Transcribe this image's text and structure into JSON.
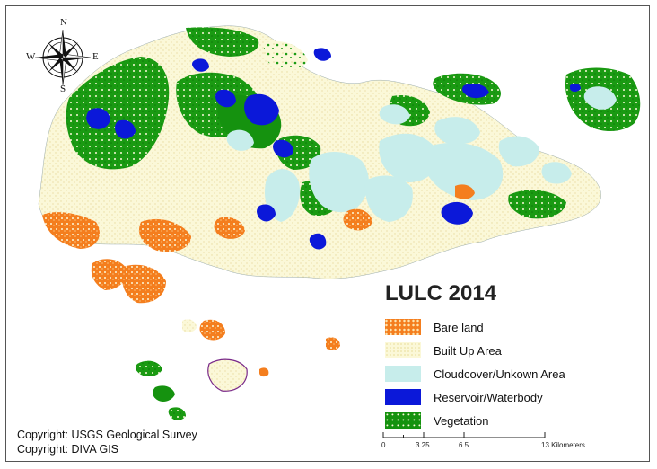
{
  "legend": {
    "title": "LULC 2014",
    "items": [
      {
        "label": "Bare land",
        "color": "#f47e1e",
        "pattern": "bare"
      },
      {
        "label": "Built Up Area",
        "color": "#fbf8d8",
        "pattern": "built"
      },
      {
        "label": "Cloudcover/Unkown Area",
        "color": "#c7edeb",
        "pattern": "cloud"
      },
      {
        "label": "Reservoir/Waterbody",
        "color": "#0b18d9",
        "pattern": "water"
      },
      {
        "label": "Vegetation",
        "color": "#15920f",
        "pattern": "veg"
      }
    ]
  },
  "copyright": {
    "line1": "Copyright: USGS Geological Survey",
    "line2": "Copyright: DIVA GIS"
  },
  "scalebar": {
    "ticks": [
      "0",
      "3.25",
      "6.5",
      "13 Kilometers"
    ],
    "values": [
      0,
      3.25,
      6.5,
      13
    ]
  },
  "compass": {
    "n": "N",
    "s": "S",
    "e": "E",
    "w": "W"
  },
  "colors": {
    "bare": "#f47e1e",
    "built": "#fbf8d8",
    "cloud": "#c7edeb",
    "water": "#0b18d9",
    "veg": "#15920f"
  }
}
